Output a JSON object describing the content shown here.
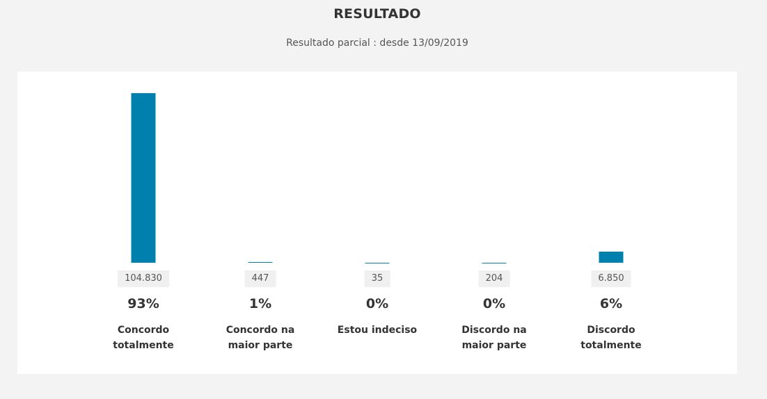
{
  "header": {
    "title": "RESULTADO",
    "subtitle": "Resultado parcial : desde 13/09/2019"
  },
  "colors": {
    "bar": "#0080ad",
    "background": "#f3f3f3",
    "panel": "#ffffff"
  },
  "chart_data": {
    "type": "bar",
    "categories": [
      "Concordo totalmente",
      "Concordo na maior parte",
      "Estou indeciso",
      "Discordo na maior parte",
      "Discordo totalmente"
    ],
    "values": [
      104830,
      447,
      35,
      204,
      6850
    ],
    "value_labels": [
      "104.830",
      "447",
      "35",
      "204",
      "6.850"
    ],
    "percent_labels": [
      "93%",
      "1%",
      "0%",
      "0%",
      "6%"
    ],
    "ylim": [
      0,
      104830
    ],
    "grid": false,
    "legend": "none"
  }
}
